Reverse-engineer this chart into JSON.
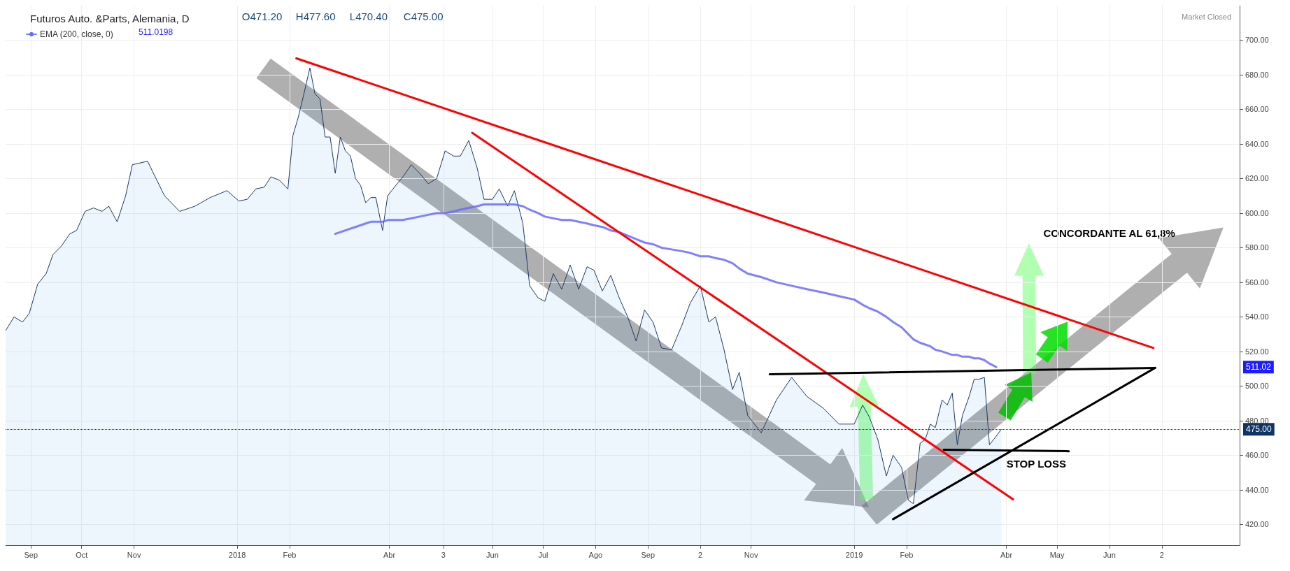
{
  "chart_data": {
    "type": "area",
    "title": "Futuros Auto. &Parts, Alemania, D",
    "annotations": [
      "O471.20",
      "H477.60",
      "L470.40",
      "C475.00",
      "511.0198",
      "Market Closed",
      "511.02",
      {
        "text": "STOP LOSS",
        "x": "2019-03-30",
        "y": 455
      },
      "CONCORDANTE AL 61,8%"
    ],
    "x": [
      "2017-08-17",
      "2017-08-22",
      "2017-08-27",
      "2017-08-31",
      "2017-09-05",
      "2017-09-10",
      "2017-09-14",
      "2017-09-19",
      "2017-09-24",
      "2017-09-28",
      "2017-10-03",
      "2017-10-08",
      "2017-10-13",
      "2017-10-17",
      "2017-10-22",
      "2017-10-27",
      "2017-10-31",
      "2017-11-09",
      "2017-11-19",
      "2017-11-28",
      "2017-12-07",
      "2017-12-16",
      "2017-12-26",
      "2018-01-02",
      "2018-01-07",
      "2018-01-12",
      "2018-01-17",
      "2018-01-21",
      "2018-01-26",
      "2018-01-31",
      "2018-02-03",
      "2018-02-06",
      "2018-02-09",
      "2018-02-13",
      "2018-02-16",
      "2018-02-19",
      "2018-02-22",
      "2018-02-25",
      "2018-02-28",
      "2018-03-03",
      "2018-03-06",
      "2018-03-09",
      "2018-03-12",
      "2018-03-15",
      "2018-03-18",
      "2018-03-21",
      "2018-03-24",
      "2018-03-28",
      "2018-03-31",
      "2018-04-04",
      "2018-04-09",
      "2018-04-14",
      "2018-04-19",
      "2018-04-24",
      "2018-04-29",
      "2018-05-04",
      "2018-05-09",
      "2018-05-13",
      "2018-05-18",
      "2018-05-23",
      "2018-05-27",
      "2018-06-01",
      "2018-06-05",
      "2018-06-10",
      "2018-06-14",
      "2018-06-19",
      "2018-06-23",
      "2018-06-28",
      "2018-07-02",
      "2018-07-07",
      "2018-07-12",
      "2018-07-17",
      "2018-07-22",
      "2018-07-27",
      "2018-07-31",
      "2018-08-05",
      "2018-08-10",
      "2018-08-15",
      "2018-08-20",
      "2018-08-25",
      "2018-08-30",
      "2018-09-04",
      "2018-09-09",
      "2018-09-15",
      "2018-09-21",
      "2018-09-26",
      "2018-10-02",
      "2018-10-07",
      "2018-10-11",
      "2018-10-16",
      "2018-10-21",
      "2018-10-25",
      "2018-10-30",
      "2018-11-07",
      "2018-11-16",
      "2018-11-25",
      "2018-12-04",
      "2018-12-14",
      "2018-12-23",
      "2019-01-01",
      "2019-01-06",
      "2019-01-10",
      "2019-01-15",
      "2019-01-20",
      "2019-01-24",
      "2019-01-29",
      "2019-02-02",
      "2019-02-05",
      "2019-02-09",
      "2019-02-12",
      "2019-02-15",
      "2019-02-18",
      "2019-02-22",
      "2019-02-25",
      "2019-02-28",
      "2019-03-03",
      "2019-03-06",
      "2019-03-10",
      "2019-03-13",
      "2019-03-16",
      "2019-03-19",
      "2019-03-22",
      "2019-03-26",
      "2019-03-29"
    ],
    "series": [
      {
        "color": "#1b3a63",
        "values": [
          532,
          540,
          537,
          542,
          559,
          565,
          576,
          581,
          588,
          590,
          601,
          603,
          601,
          604,
          595,
          610,
          628,
          630,
          610,
          601,
          604,
          609,
          613,
          607,
          608,
          614,
          615,
          621,
          619,
          614,
          645,
          655,
          667,
          684,
          669,
          666,
          644,
          644,
          623,
          644,
          636,
          633,
          620,
          616,
          606,
          609,
          609,
          590,
          610,
          615,
          621,
          628,
          623,
          617,
          620,
          636,
          633,
          633,
          642,
          626,
          608,
          608,
          614,
          604,
          613,
          594,
          558,
          551,
          549,
          565,
          556,
          570,
          556,
          569,
          567,
          555,
          564,
          551,
          540,
          526,
          544,
          537,
          522,
          521,
          535,
          548,
          558,
          537,
          540,
          521,
          498,
          508,
          483,
          473,
          492,
          505,
          494,
          487,
          478,
          478,
          489,
          482,
          469,
          448,
          460,
          453,
          434,
          432,
          467,
          469,
          478,
          476,
          492,
          489,
          496,
          466,
          483,
          494,
          504,
          504,
          505,
          466,
          471,
          475
        ]
      },
      {
        "type": "line",
        "name": "EMA (200, close, 0)",
        "color": "#6a6aff",
        "x": [
          "2018-02-28",
          "2018-03-03",
          "2018-03-06",
          "2018-03-09",
          "2018-03-12",
          "2018-03-15",
          "2018-03-18",
          "2018-03-21",
          "2018-03-24",
          "2018-03-28",
          "2018-03-31",
          "2018-04-04",
          "2018-04-09",
          "2018-04-14",
          "2018-04-19",
          "2018-04-24",
          "2018-04-29",
          "2018-05-04",
          "2018-05-09",
          "2018-05-13",
          "2018-05-18",
          "2018-05-23",
          "2018-05-27",
          "2018-06-01",
          "2018-06-05",
          "2018-06-10",
          "2018-06-14",
          "2018-06-19",
          "2018-06-23",
          "2018-06-28",
          "2018-07-02",
          "2018-07-07",
          "2018-07-12",
          "2018-07-17",
          "2018-07-22",
          "2018-07-27",
          "2018-07-31",
          "2018-08-05",
          "2018-08-10",
          "2018-08-15",
          "2018-08-20",
          "2018-08-25",
          "2018-08-30",
          "2018-09-04",
          "2018-09-09",
          "2018-09-15",
          "2018-09-21",
          "2018-09-26",
          "2018-10-02",
          "2018-10-07",
          "2018-10-11",
          "2018-10-16",
          "2018-10-21",
          "2018-10-25",
          "2018-10-30",
          "2018-11-07",
          "2018-11-16",
          "2018-11-25",
          "2018-12-04",
          "2018-12-14",
          "2018-12-23",
          "2019-01-01",
          "2019-01-06",
          "2019-01-10",
          "2019-01-15",
          "2019-01-20",
          "2019-01-24",
          "2019-01-29",
          "2019-02-02",
          "2019-02-05",
          "2019-02-09",
          "2019-02-12",
          "2019-02-15",
          "2019-02-18",
          "2019-02-22",
          "2019-02-25",
          "2019-02-28",
          "2019-03-03",
          "2019-03-06",
          "2019-03-10",
          "2019-03-13",
          "2019-03-16",
          "2019-03-19",
          "2019-03-22",
          "2019-03-26"
        ],
        "values": [
          588,
          589,
          590,
          591,
          592,
          593,
          594,
          595,
          595,
          595,
          596,
          596,
          596,
          597,
          598,
          599,
          600,
          600,
          601,
          602,
          603,
          604,
          605,
          605,
          605,
          605,
          605,
          604,
          602,
          600,
          598,
          597,
          596,
          596,
          595,
          594,
          593,
          592,
          590,
          589,
          587,
          585,
          583,
          582,
          580,
          579,
          578,
          577,
          575,
          575,
          574,
          573,
          571,
          568,
          565,
          563,
          560,
          558,
          556,
          554,
          552,
          550,
          547,
          545,
          543,
          540,
          537,
          534,
          530,
          527,
          525,
          524,
          523,
          521,
          520,
          519,
          518,
          518,
          517,
          517,
          516,
          516,
          515,
          513,
          511
        ]
      },
      {
        "type": "line",
        "color": "#ff0000",
        "x": [
          "2018-02-05",
          "2019-06-27"
        ],
        "values": [
          689.5,
          522
        ]
      },
      {
        "type": "line",
        "color": "#ff0000",
        "x": [
          "2018-05-20",
          "2019-04-05"
        ],
        "values": [
          646.4,
          434.5
        ]
      },
      {
        "type": "line",
        "color": "#000000",
        "x": [
          "2018-11-12",
          "2019-06-28"
        ],
        "values": [
          506.8,
          510.5
        ]
      },
      {
        "type": "line",
        "color": "#000000",
        "x": [
          "2019-01-24",
          "2019-06-28"
        ],
        "values": [
          423,
          510.5
        ]
      },
      {
        "type": "line",
        "color": "#000000",
        "x": [
          "2019-02-23",
          "2019-05-08"
        ],
        "values": [
          463.2,
          462.3
        ]
      }
    ],
    "ref_lines": [
      {
        "axis": "y",
        "value": 475,
        "label": "475.00",
        "color": "#0f3566",
        "line_style": "dotted"
      }
    ],
    "xlim": [
      "2017-08-17",
      "2019-08-17"
    ],
    "xticks": [
      {
        "value": "2017-09-01",
        "label": "Sep"
      },
      {
        "value": "2017-10-01",
        "label": "Oct"
      },
      {
        "value": "2017-11-01",
        "label": "Nov"
      },
      {
        "value": "2018-01-01",
        "label": "2018"
      },
      {
        "value": "2018-02-01",
        "label": "Feb"
      },
      {
        "value": "2018-04-01",
        "label": "Abr"
      },
      {
        "value": "2018-05-03",
        "label": "3"
      },
      {
        "value": "2018-06-01",
        "label": "Jun"
      },
      {
        "value": "2018-07-01",
        "label": "Jul"
      },
      {
        "value": "2018-08-01",
        "label": "Ago"
      },
      {
        "value": "2018-09-01",
        "label": "Sep"
      },
      {
        "value": "2018-10-02",
        "label": "2"
      },
      {
        "value": "2018-11-01",
        "label": "Nov"
      },
      {
        "value": "2019-01-01",
        "label": "2019"
      },
      {
        "value": "2019-02-01",
        "label": "Feb"
      },
      {
        "value": "2019-04-01",
        "label": "Abr"
      },
      {
        "value": "2019-05-01",
        "label": "May"
      },
      {
        "value": "2019-06-01",
        "label": "Jun"
      },
      {
        "value": "2019-07-02",
        "label": "2"
      }
    ],
    "ylim": [
      408,
      720
    ],
    "yticks": [
      {
        "value": 420,
        "label": "420.00"
      },
      {
        "value": 440,
        "label": "440.00"
      },
      {
        "value": 460,
        "label": "460.00"
      },
      {
        "value": 480,
        "label": "480.00"
      },
      {
        "value": 500,
        "label": "500.00"
      },
      {
        "value": 520,
        "label": "520.00"
      },
      {
        "value": 540,
        "label": "540.00"
      },
      {
        "value": 560,
        "label": "560.00"
      },
      {
        "value": 580,
        "label": "580.00"
      },
      {
        "value": 600,
        "label": "600.00"
      },
      {
        "value": 620,
        "label": "620.00"
      },
      {
        "value": 640,
        "label": "640.00"
      },
      {
        "value": 660,
        "label": "660.00"
      },
      {
        "value": 680,
        "label": "680.00"
      },
      {
        "value": 700,
        "label": "700.00"
      }
    ],
    "grid": true,
    "legend": "top left",
    "marker": "none",
    "line_style": "solid"
  }
}
